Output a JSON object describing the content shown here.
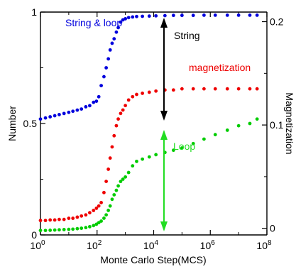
{
  "chart_data": {
    "type": "scatter",
    "xlabel": "Monte Carlo Step(MCS)",
    "ylabel_left": "Number",
    "ylabel_right": "Magnetization",
    "x_scale": "log",
    "xlim": [
      1,
      100000000
    ],
    "ylim_left": [
      0,
      1
    ],
    "ylim_right": [
      -0.0064,
      0.2093
    ],
    "x_ticks": [
      1,
      100,
      10000,
      1000000,
      100000000
    ],
    "x_tick_labels": [
      {
        "base": "10",
        "exp": "0"
      },
      {
        "base": "10",
        "exp": "2"
      },
      {
        "base": "10",
        "exp": "4"
      },
      {
        "base": "10",
        "exp": "6"
      },
      {
        "base": "10",
        "exp": "8"
      }
    ],
    "y_left_ticks": [
      0,
      0.5,
      1
    ],
    "y_left_tick_labels": [
      "0",
      "0.5",
      "1"
    ],
    "y_right_ticks": [
      0,
      0.1,
      0.2
    ],
    "y_right_tick_labels": [
      "0",
      "0.1",
      "0.2"
    ],
    "grid": false,
    "annotations": {
      "string_loop": "String & loop",
      "magnetization": "magnetization",
      "string": "String",
      "loop": "Loop"
    },
    "series": [
      {
        "name": "String & loop",
        "color": "#0000dd",
        "axis": "left",
        "points": [
          [
            1,
            0.52
          ],
          [
            1.5,
            0.525
          ],
          [
            2.2,
            0.53
          ],
          [
            3.2,
            0.535
          ],
          [
            4.6,
            0.54
          ],
          [
            6.8,
            0.545
          ],
          [
            10,
            0.55
          ],
          [
            14,
            0.555
          ],
          [
            20,
            0.56
          ],
          [
            28,
            0.565
          ],
          [
            40,
            0.575
          ],
          [
            55,
            0.58
          ],
          [
            75,
            0.595
          ],
          [
            95,
            0.6
          ],
          [
            115,
            0.62
          ],
          [
            140,
            0.67
          ],
          [
            175,
            0.71
          ],
          [
            210,
            0.75
          ],
          [
            250,
            0.79
          ],
          [
            290,
            0.83
          ],
          [
            340,
            0.86
          ],
          [
            400,
            0.88
          ],
          [
            480,
            0.91
          ],
          [
            560,
            0.93
          ],
          [
            680,
            0.955
          ],
          [
            820,
            0.965
          ],
          [
            1000,
            0.97
          ],
          [
            1300,
            0.975
          ],
          [
            1800,
            0.978
          ],
          [
            2500,
            0.98
          ],
          [
            4000,
            0.981
          ],
          [
            7000,
            0.982
          ],
          [
            12000,
            0.983
          ],
          [
            25000,
            0.984
          ],
          [
            50000,
            0.985
          ],
          [
            100000,
            0.985
          ],
          [
            250000,
            0.985
          ],
          [
            600000,
            0.986
          ],
          [
            1500000,
            0.986
          ],
          [
            4000000,
            0.986
          ],
          [
            10000000,
            0.986
          ],
          [
            25000000,
            0.986
          ],
          [
            45000000,
            0.986
          ]
        ]
      },
      {
        "name": "magnetization",
        "color": "#ee0000",
        "axis": "right",
        "points": [
          [
            1,
            0.0076
          ],
          [
            1.5,
            0.0076
          ],
          [
            2.2,
            0.0081
          ],
          [
            3.2,
            0.0081
          ],
          [
            4.6,
            0.0086
          ],
          [
            6.8,
            0.0086
          ],
          [
            10,
            0.0097
          ],
          [
            14,
            0.0097
          ],
          [
            20,
            0.0108
          ],
          [
            28,
            0.0119
          ],
          [
            40,
            0.013
          ],
          [
            55,
            0.0151
          ],
          [
            75,
            0.0173
          ],
          [
            95,
            0.0194
          ],
          [
            115,
            0.0216
          ],
          [
            140,
            0.0249
          ],
          [
            175,
            0.0346
          ],
          [
            210,
            0.0454
          ],
          [
            250,
            0.0572
          ],
          [
            290,
            0.068
          ],
          [
            340,
            0.0788
          ],
          [
            400,
            0.0896
          ],
          [
            480,
            0.0993
          ],
          [
            560,
            0.1058
          ],
          [
            680,
            0.1112
          ],
          [
            820,
            0.1145
          ],
          [
            1000,
            0.1188
          ],
          [
            1300,
            0.1242
          ],
          [
            1800,
            0.1274
          ],
          [
            2500,
            0.1296
          ],
          [
            4000,
            0.1307
          ],
          [
            7000,
            0.1317
          ],
          [
            12000,
            0.1328
          ],
          [
            25000,
            0.1339
          ],
          [
            50000,
            0.1339
          ],
          [
            100000,
            0.135
          ],
          [
            250000,
            0.135
          ],
          [
            600000,
            0.135
          ],
          [
            1500000,
            0.135
          ],
          [
            4000000,
            0.135
          ],
          [
            10000000,
            0.135
          ],
          [
            25000000,
            0.135
          ],
          [
            45000000,
            0.135
          ]
        ]
      },
      {
        "name": "Loop",
        "color": "#00cc00",
        "axis": "left",
        "points": [
          [
            1,
            0.02
          ],
          [
            1.5,
            0.02
          ],
          [
            2.2,
            0.021
          ],
          [
            3.2,
            0.022
          ],
          [
            4.6,
            0.023
          ],
          [
            6.8,
            0.024
          ],
          [
            10,
            0.025
          ],
          [
            14,
            0.026
          ],
          [
            20,
            0.028
          ],
          [
            28,
            0.03
          ],
          [
            40,
            0.033
          ],
          [
            55,
            0.037
          ],
          [
            75,
            0.042
          ],
          [
            95,
            0.048
          ],
          [
            115,
            0.055
          ],
          [
            140,
            0.062
          ],
          [
            175,
            0.075
          ],
          [
            210,
            0.09
          ],
          [
            250,
            0.11
          ],
          [
            290,
            0.13
          ],
          [
            340,
            0.16
          ],
          [
            400,
            0.18
          ],
          [
            480,
            0.2
          ],
          [
            560,
            0.22
          ],
          [
            680,
            0.24
          ],
          [
            820,
            0.25
          ],
          [
            1000,
            0.26
          ],
          [
            1300,
            0.28
          ],
          [
            1800,
            0.31
          ],
          [
            2500,
            0.33
          ],
          [
            4000,
            0.34
          ],
          [
            7000,
            0.35
          ],
          [
            12000,
            0.36
          ],
          [
            25000,
            0.37
          ],
          [
            50000,
            0.38
          ],
          [
            100000,
            0.39
          ],
          [
            250000,
            0.41
          ],
          [
            600000,
            0.43
          ],
          [
            1500000,
            0.45
          ],
          [
            4000000,
            0.47
          ],
          [
            10000000,
            0.49
          ],
          [
            25000000,
            0.5
          ],
          [
            45000000,
            0.52
          ]
        ]
      }
    ]
  }
}
